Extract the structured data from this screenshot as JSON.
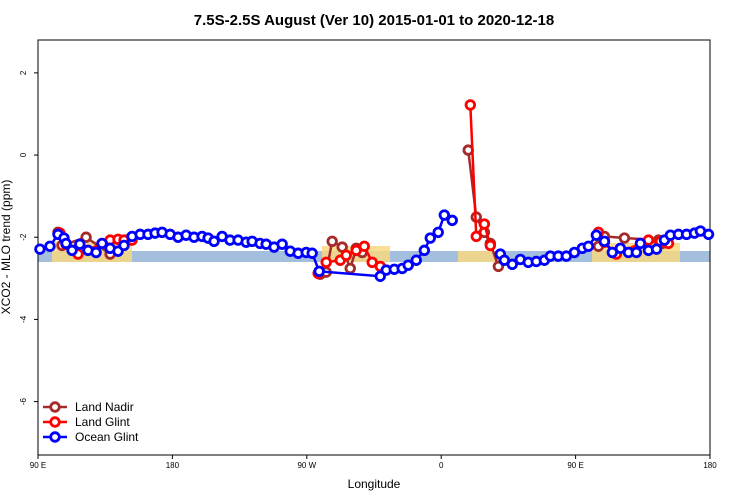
{
  "chart_data": {
    "type": "line",
    "title": "7.5S-2.5S August (Ver 10)   2015-01-01 to 2020-12-18",
    "x_label": "Longitude",
    "y_label": "XCO2 - MLO trend (ppm)",
    "xlim": [
      90,
      540
    ],
    "xticks": [
      {
        "value": 90,
        "label": "90 E"
      },
      {
        "value": 180,
        "label": "180"
      },
      {
        "value": 270,
        "label": "90 W"
      },
      {
        "value": 360,
        "label": "0"
      },
      {
        "value": 450,
        "label": "90 E"
      },
      {
        "value": 540,
        "label": "180"
      }
    ],
    "ylim": [
      -7.3,
      2.8
    ],
    "yticks": [
      -6,
      -4,
      -2,
      0,
      2
    ],
    "legend": "bottomleft",
    "series": [
      {
        "name": "Land Nadir",
        "color": "#a52a2a",
        "x": [
          103.4,
          106.1,
          122.2,
          138.3,
          149,
          null,
          279,
          283,
          287,
          293.7,
          299.1,
          303.1,
          307.1,
          null,
          378.1,
          383.5,
          388.9,
          392.9,
          398.3,
          null,
          465.3,
          469.3,
          482.7,
          505.5,
          508.2
        ],
        "values": [
          -1.88,
          -2.2,
          -2.0,
          -2.41,
          -2.07,
          null,
          -2.9,
          -2.85,
          -2.1,
          -2.24,
          -2.76,
          -2.27,
          -2.37,
          null,
          0.12,
          -1.51,
          -1.88,
          -2.15,
          -2.71,
          null,
          -2.22,
          -1.98,
          -2.02,
          -2.07,
          -2.15
        ]
      },
      {
        "name": "Land Glint",
        "color": "#ff0000",
        "x": [
          104.7,
          108.8,
          116.8,
          138.3,
          143.6,
          147.6,
          153,
          null,
          277.6,
          283,
          292.4,
          296.4,
          303.1,
          308.5,
          313.8,
          319.2,
          null,
          379.5,
          383.5,
          388.9,
          392.9,
          null,
          465.3,
          469.3,
          477.3,
          498.8,
          506.8,
          512.2
        ],
        "values": [
          -1.9,
          -2.17,
          -2.41,
          -2.07,
          -2.05,
          -2.07,
          -2.07,
          null,
          -2.88,
          -2.61,
          -2.56,
          -2.44,
          -2.32,
          -2.22,
          -2.61,
          -2.71,
          null,
          1.22,
          -1.98,
          -1.68,
          -2.2,
          null,
          -1.88,
          -2.12,
          -2.41,
          -2.07,
          -2.1,
          -2.15
        ]
      },
      {
        "name": "Ocean Glint",
        "color": "#0000ff",
        "x": [
          91.3,
          98,
          103.4,
          107.4,
          108.8,
          112.8,
          118,
          123.5,
          128.9,
          132.9,
          138.3,
          143.6,
          147.6,
          153,
          158.4,
          163.7,
          168.4,
          173.1,
          178.5,
          183.8,
          189.2,
          194.5,
          199.9,
          203.9,
          207.9,
          213.3,
          218.6,
          224,
          229.4,
          233.4,
          238.7,
          242.8,
          248.1,
          253.5,
          258.9,
          264.2,
          269.6,
          273.6,
          278.3,
          319.2,
          323.2,
          328.6,
          333.9,
          337.9,
          343.3,
          348.7,
          352.7,
          358,
          362.1,
          367.4,
          null,
          399.6,
          402.3,
          407.6,
          413,
          418.3,
          423.7,
          429.1,
          433.1,
          438.4,
          443.8,
          449.2,
          454.5,
          458.6,
          463.9,
          469.3,
          474.6,
          480,
          485.4,
          490.7,
          493.4,
          498.8,
          504.2,
          509.5,
          513.5,
          518.9,
          524.3,
          529.6,
          533.6,
          539
        ],
        "values": [
          -2.29,
          -2.22,
          -1.93,
          -2.02,
          -2.15,
          -2.32,
          -2.17,
          -2.32,
          -2.37,
          -2.15,
          -2.27,
          -2.34,
          -2.2,
          -1.98,
          -1.93,
          -1.93,
          -1.9,
          -1.88,
          -1.93,
          -2.0,
          -1.95,
          -2.0,
          -1.98,
          -2.02,
          -2.1,
          -1.98,
          -2.07,
          -2.07,
          -2.12,
          -2.1,
          -2.15,
          -2.17,
          -2.24,
          -2.17,
          -2.34,
          -2.39,
          -2.37,
          -2.39,
          -2.83,
          -2.95,
          -2.8,
          -2.78,
          -2.76,
          -2.68,
          -2.56,
          -2.32,
          -2.02,
          -1.88,
          -1.46,
          -1.59,
          null,
          -2.41,
          -2.56,
          -2.66,
          -2.54,
          -2.61,
          -2.59,
          -2.56,
          -2.46,
          -2.46,
          -2.46,
          -2.37,
          -2.27,
          -2.22,
          -1.95,
          -2.1,
          -2.37,
          -2.27,
          -2.37,
          -2.37,
          -2.15,
          -2.32,
          -2.29,
          -2.07,
          -1.95,
          -1.93,
          -1.93,
          -1.9,
          -1.85,
          -1.93
        ]
      }
    ]
  }
}
